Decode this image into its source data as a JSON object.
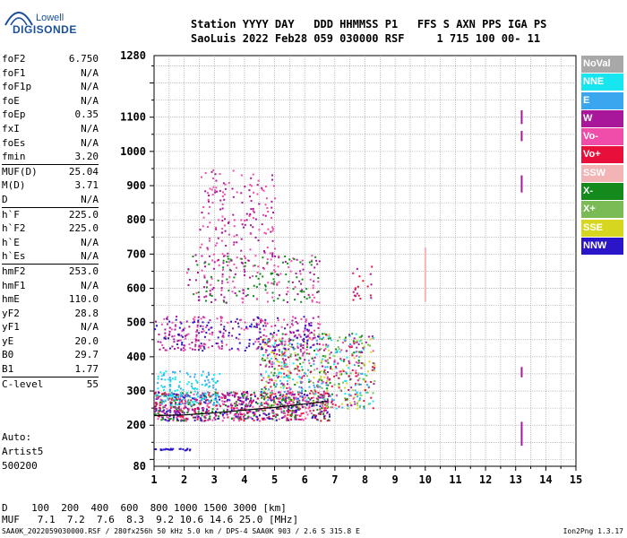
{
  "logo": {
    "top": "Lowell",
    "bottom": "DIGISONDE"
  },
  "header": {
    "line1": "Station YYYY DAY   DDD HHMMSS P1   FFS S AXN PPS IGA PS",
    "line2": "SaoLuis 2022 Feb28 059 030000 RSF     1 715 100 00- 11"
  },
  "params": [
    {
      "label": "foF2",
      "value": "6.750"
    },
    {
      "label": "foF1",
      "value": "N/A"
    },
    {
      "label": "foF1p",
      "value": "N/A"
    },
    {
      "label": "foE",
      "value": "N/A"
    },
    {
      "label": "foEp",
      "value": "0.35"
    },
    {
      "label": "fxI",
      "value": "N/A"
    },
    {
      "label": "foEs",
      "value": "N/A"
    },
    {
      "label": "fmin",
      "value": "3.20"
    },
    {
      "label": "MUF(D)",
      "value": "25.04",
      "sep": true
    },
    {
      "label": "M(D)",
      "value": "3.71"
    },
    {
      "label": "D",
      "value": "N/A"
    },
    {
      "label": "h`F",
      "value": "225.0",
      "sep": true
    },
    {
      "label": "h`F2",
      "value": "225.0"
    },
    {
      "label": "h`E",
      "value": "N/A"
    },
    {
      "label": "h`Es",
      "value": "N/A"
    },
    {
      "label": "hmF2",
      "value": "253.0",
      "sep": true
    },
    {
      "label": "hmF1",
      "value": "N/A"
    },
    {
      "label": "hmE",
      "value": "110.0"
    },
    {
      "label": "yF2",
      "value": "28.8"
    },
    {
      "label": "yF1",
      "value": "N/A"
    },
    {
      "label": "yE",
      "value": "20.0"
    },
    {
      "label": "B0",
      "value": "29.7"
    },
    {
      "label": "B1",
      "value": "1.77"
    },
    {
      "label": "C-level",
      "value": "55",
      "sep": true
    }
  ],
  "auto": {
    "line1": "Auto:",
    "line2": "Artist5",
    "line3": "500200"
  },
  "legend": [
    {
      "label": "NoVal",
      "color": "#a8a8a8"
    },
    {
      "label": "NNE",
      "color": "#17e6f0"
    },
    {
      "label": "E",
      "color": "#3aa6f0"
    },
    {
      "label": "W",
      "color": "#a8169a"
    },
    {
      "label": "Vo-",
      "color": "#f04caa"
    },
    {
      "label": "Vo+",
      "color": "#e8103a"
    },
    {
      "label": "SSW",
      "color": "#f2b4b4"
    },
    {
      "label": "X-",
      "color": "#138a1b"
    },
    {
      "label": "X+",
      "color": "#7abb55"
    },
    {
      "label": "SSE",
      "color": "#d6d620"
    },
    {
      "label": "NNW",
      "color": "#2a16c8"
    }
  ],
  "muf_table": {
    "d_row": "D    100  200  400  600  800 1000 1500 3000 [km]",
    "muf_row": "MUF   7.1  7.2  7.6  8.3  9.2 10.6 14.6 25.0 [MHz]"
  },
  "footer": "SAA0K_2022059030000.RSF / 280fx256h 50 kHz 5.0 km / DPS-4 SAA0K 903 / 2.6 S 315.8 E",
  "version": "Ion2Png 1.3.17",
  "chart_data": {
    "type": "scatter",
    "title": "",
    "xlabel": "",
    "ylabel": "",
    "x_ticks": [
      "1",
      "2",
      "3",
      "4",
      "5",
      "6",
      "7",
      "8",
      "9",
      "10",
      "11",
      "12",
      "13",
      "14",
      "15"
    ],
    "y_ticks": [
      "80",
      "200",
      "300",
      "400",
      "500",
      "600",
      "700",
      "800",
      "900",
      "1000",
      "1100",
      "1280"
    ],
    "xlim": [
      1,
      15
    ],
    "ylim": [
      80,
      1280
    ],
    "grid": true,
    "trace": {
      "name": "",
      "x": [
        1.0,
        2.0,
        3.0,
        4.0,
        5.0,
        6.0,
        6.75
      ],
      "y": [
        228,
        230,
        236,
        244,
        252,
        262,
        270
      ]
    },
    "clusters": [
      {
        "x": [
          1.0,
          6.8
        ],
        "y": [
          215,
          300
        ],
        "n": 900,
        "colors": [
          "Vo-",
          "Vo+",
          "NNW",
          "W",
          "X-"
        ]
      },
      {
        "x": [
          4.5,
          8.3
        ],
        "y": [
          250,
          470
        ],
        "n": 700,
        "colors": [
          "Vo-",
          "Vo+",
          "W",
          "E",
          "NNE",
          "X-",
          "X+",
          "SSE"
        ]
      },
      {
        "x": [
          1.0,
          3.2
        ],
        "y": [
          260,
          360
        ],
        "n": 150,
        "colors": [
          "NNE",
          "E"
        ]
      },
      {
        "x": [
          1.0,
          6.5
        ],
        "y": [
          420,
          520
        ],
        "n": 350,
        "colors": [
          "NNW",
          "W",
          "Vo-"
        ]
      },
      {
        "x": [
          2.0,
          6.5
        ],
        "y": [
          560,
          700
        ],
        "n": 250,
        "colors": [
          "W",
          "Vo-",
          "X-"
        ]
      },
      {
        "x": [
          2.5,
          5.0
        ],
        "y": [
          700,
          950
        ],
        "n": 160,
        "colors": [
          "W",
          "Vo-"
        ]
      },
      {
        "x": [
          7.5,
          8.2
        ],
        "y": [
          560,
          680
        ],
        "n": 20,
        "colors": [
          "Vo+",
          "W"
        ]
      },
      {
        "x": [
          1.0,
          2.2
        ],
        "y": [
          128,
          134
        ],
        "n": 25,
        "colors": [
          "NNW"
        ]
      }
    ],
    "bars": [
      {
        "x": 13.2,
        "y": [
          1080,
          1120
        ],
        "color": "W"
      },
      {
        "x": 13.2,
        "y": [
          1030,
          1060
        ],
        "color": "W"
      },
      {
        "x": 13.2,
        "y": [
          880,
          930
        ],
        "color": "W"
      },
      {
        "x": 13.2,
        "y": [
          340,
          370
        ],
        "color": "W"
      },
      {
        "x": 13.2,
        "y": [
          140,
          210
        ],
        "color": "W"
      },
      {
        "x": 10.0,
        "y": [
          560,
          720
        ],
        "color": "SSW"
      }
    ]
  }
}
